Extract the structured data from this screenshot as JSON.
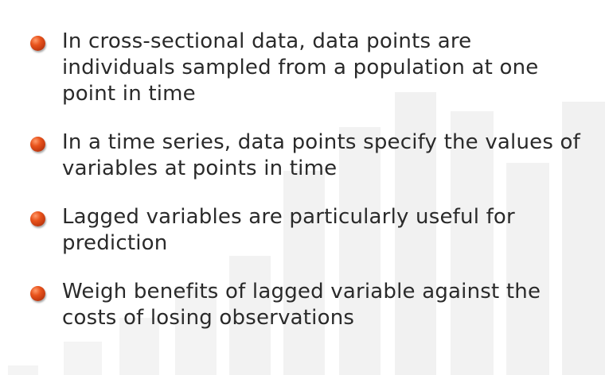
{
  "bullets": [
    {
      "text": "In cross-sectional data, data points are individuals sampled from a population at one point in time"
    },
    {
      "text": "In a time series, data points specify the values of variables at points in time"
    },
    {
      "text": "Lagged variables are particularly useful for prediction"
    },
    {
      "text": "Weigh benefits of lagged variable against the costs of losing observations"
    }
  ],
  "colors": {
    "bullet": "#e8531c",
    "text": "#2a2a2a",
    "background_bars": "#f3f3f3"
  },
  "icons": {
    "bullet": "orange-sphere-bullet-icon"
  }
}
